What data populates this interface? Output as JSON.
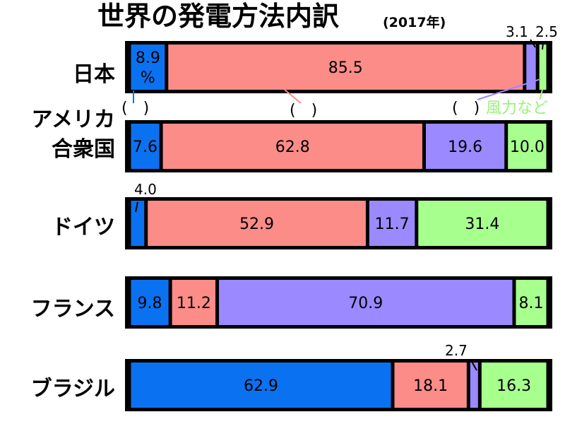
{
  "title": "世界の発電方法内訳",
  "subtitle": "(2017年)",
  "percent_unit": "%",
  "colors": {
    "series": [
      "#0a72f0",
      "#fb8c88",
      "#9a89ff",
      "#a7ff8e"
    ],
    "bar_border": "#000000",
    "note": "#99f27a"
  },
  "legend_hint": {
    "parens": [
      "(　)",
      "(　)",
      "(　)"
    ],
    "note": "風力など"
  },
  "chart_data": {
    "type": "bar",
    "orientation": "horizontal",
    "stacked": true,
    "title": "世界の発電方法内訳",
    "subtitle": "(2017年)",
    "categories": [
      "日本",
      "アメリカ合衆国",
      "ドイツ",
      "フランス",
      "ブラジル"
    ],
    "category_lines": [
      [
        "日本"
      ],
      [
        "アメリカ",
        "合衆国"
      ],
      [
        "ドイツ"
      ],
      [
        "フランス"
      ],
      [
        "ブラジル"
      ]
    ],
    "series": [
      {
        "values": [
          8.9,
          7.6,
          4.0,
          9.8,
          62.9
        ],
        "color": "#0a72f0"
      },
      {
        "values": [
          85.5,
          62.8,
          52.9,
          11.2,
          18.1
        ],
        "color": "#fb8c88"
      },
      {
        "values": [
          3.1,
          19.6,
          11.7,
          70.9,
          2.7
        ],
        "color": "#9a89ff"
      },
      {
        "name": "風力など",
        "values": [
          2.5,
          10.0,
          31.4,
          8.1,
          16.3
        ],
        "color": "#a7ff8e"
      }
    ],
    "xlim": [
      0,
      100
    ],
    "grid": false,
    "legend": "none",
    "first_value_suffix": "%"
  }
}
